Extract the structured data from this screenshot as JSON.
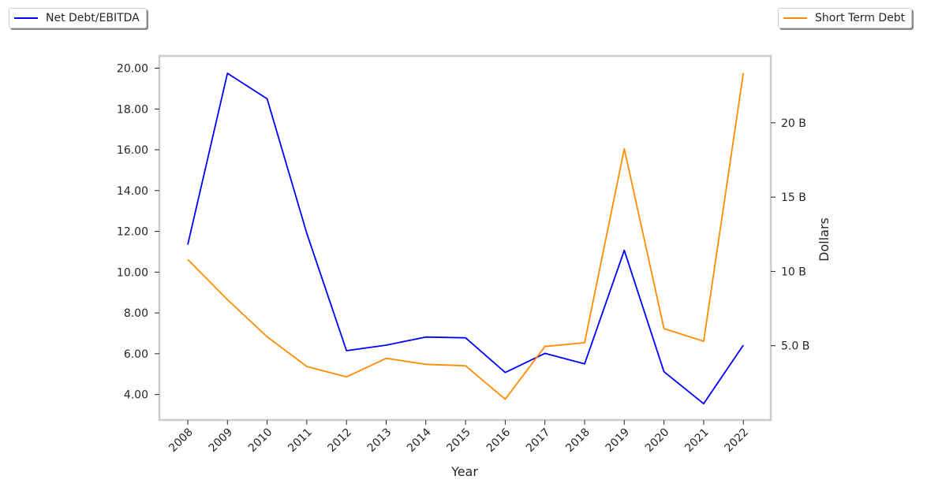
{
  "chart_data": {
    "type": "line",
    "xlabel": "Year",
    "ylabel_right": "Dollars",
    "x": [
      "2008",
      "2009",
      "2010",
      "2011",
      "2012",
      "2013",
      "2014",
      "2015",
      "2016",
      "2017",
      "2018",
      "2019",
      "2020",
      "2021",
      "2022"
    ],
    "y_left_ticks": [
      "4.00",
      "6.00",
      "8.00",
      "10.00",
      "12.00",
      "14.00",
      "16.00",
      "18.00",
      "20.00"
    ],
    "y_left_tick_values": [
      4,
      6,
      8,
      10,
      12,
      14,
      16,
      18,
      20
    ],
    "y_left_range": [
      2.75,
      20.6
    ],
    "y_right_ticks": [
      "5.0 B",
      "10 B",
      "15 B",
      "20 B"
    ],
    "y_right_tick_values": [
      5,
      10,
      15,
      20
    ],
    "y_right_range": [
      0.0,
      24.5
    ],
    "y_right_unit": "B",
    "series": [
      {
        "name": "Net Debt/EBITDA",
        "axis": "left",
        "color": "#0000ff",
        "values": [
          11.35,
          19.75,
          18.5,
          11.9,
          6.15,
          6.42,
          6.82,
          6.78,
          5.08,
          6.02,
          5.5,
          11.07,
          5.12,
          3.55,
          6.42
        ]
      },
      {
        "name": "Short Term Debt",
        "axis": "right",
        "color": "#ff8c00",
        "values": [
          10.8,
          8.1,
          5.6,
          3.6,
          2.9,
          4.15,
          3.75,
          3.65,
          1.4,
          4.95,
          5.2,
          18.25,
          6.15,
          5.3,
          23.35
        ]
      }
    ],
    "grid": false,
    "legend_placement": [
      "top-left",
      "top-right"
    ]
  }
}
